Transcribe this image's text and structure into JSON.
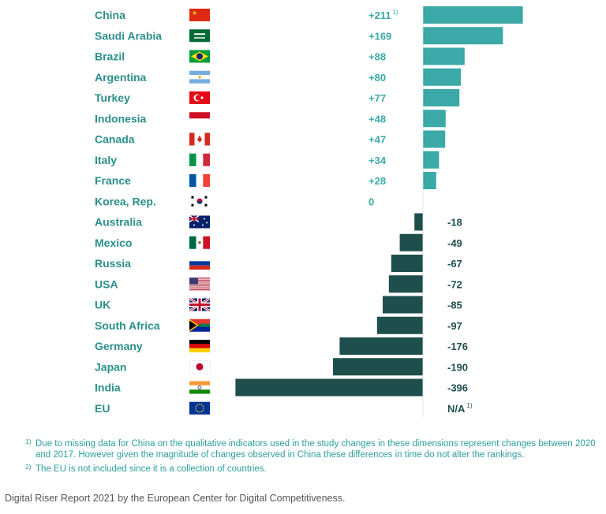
{
  "chart_data": {
    "type": "bar",
    "orientation": "horizontal",
    "categories": [
      "China",
      "Saudi Arabia",
      "Brazil",
      "Argentina",
      "Turkey",
      "Indonesia",
      "Canada",
      "Italy",
      "France",
      "Korea, Rep.",
      "Australia",
      "Mexico",
      "Russia",
      "USA",
      "UK",
      "South Africa",
      "Germany",
      "Japan",
      "India",
      "EU"
    ],
    "values": [
      211,
      169,
      88,
      80,
      77,
      48,
      47,
      34,
      28,
      0,
      -18,
      -49,
      -67,
      -72,
      -85,
      -97,
      -176,
      -190,
      -396,
      null
    ],
    "labels": [
      "+211",
      "+169",
      "+88",
      "+80",
      "+77",
      "+48",
      "+47",
      "+34",
      "+28",
      "0",
      "-18",
      "-49",
      "-67",
      "-72",
      "-85",
      "-97",
      "-176",
      "-190",
      "-396",
      "N/A"
    ],
    "label_superscripts": [
      "1)",
      "",
      "",
      "",
      "",
      "",
      "",
      "",
      "",
      "",
      "",
      "",
      "",
      "",
      "",
      "",
      "",
      "",
      "",
      "1)"
    ],
    "flags": [
      "flag-china",
      "flag-saudi-arabia",
      "flag-brazil",
      "flag-argentina",
      "flag-turkey",
      "flag-indonesia",
      "flag-canada",
      "flag-italy",
      "flag-france",
      "flag-korea",
      "flag-australia",
      "flag-mexico",
      "flag-russia",
      "flag-usa",
      "flag-uk",
      "flag-south-africa",
      "flag-germany",
      "flag-japan",
      "flag-india",
      "flag-eu"
    ],
    "colors": {
      "positive": "#3aa9a7",
      "negative": "#1f4f4d",
      "country_text": "#2b8f8c"
    },
    "xlim": [
      -396,
      211
    ]
  },
  "footnotes": [
    {
      "mark": "1)",
      "text": "Due to missing data for China on the qualitative indicators used in the study changes in these dimensions represent changes between 2020 and 2017. However given the magnitude of changes observed in China these differences in time do not alter the rankings."
    },
    {
      "mark": "2)",
      "text": "The EU is not included since it is a collection of countries."
    }
  ],
  "caption": "Digital Riser Report 2021 by the European Center for Digital Competitiveness."
}
